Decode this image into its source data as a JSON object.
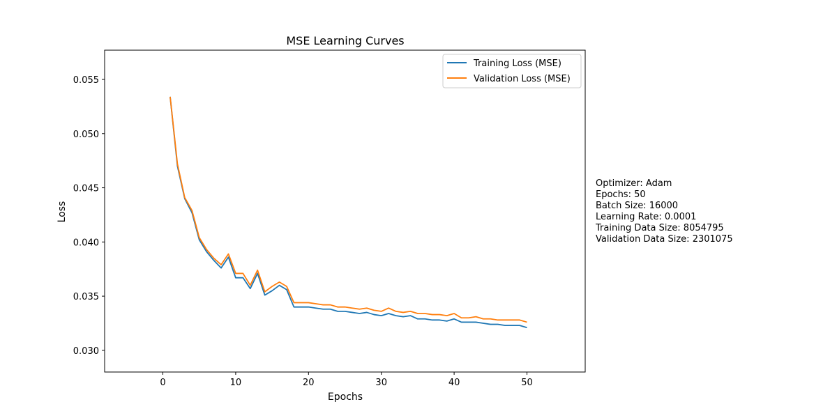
{
  "chart_data": {
    "type": "line",
    "title": "MSE Learning Curves",
    "xlabel": "Epochs",
    "ylabel": "Loss",
    "xlim": [
      -8,
      58
    ],
    "ylim": [
      0.028,
      0.0577
    ],
    "xticks": [
      0,
      10,
      20,
      30,
      40,
      50
    ],
    "yticks": [
      0.03,
      0.035,
      0.04,
      0.045,
      0.05,
      0.055
    ],
    "ytick_labels": [
      "0.030",
      "0.035",
      "0.040",
      "0.045",
      "0.050",
      "0.055"
    ],
    "grid": false,
    "legend_position": "top-right",
    "x": [
      1,
      2,
      3,
      4,
      5,
      6,
      7,
      8,
      9,
      10,
      11,
      12,
      13,
      14,
      15,
      16,
      17,
      18,
      19,
      20,
      21,
      22,
      23,
      24,
      25,
      26,
      27,
      28,
      29,
      30,
      31,
      32,
      33,
      34,
      35,
      36,
      37,
      38,
      39,
      40,
      41,
      42,
      43,
      44,
      45,
      46,
      47,
      48,
      49,
      50
    ],
    "series": [
      {
        "name": "Training Loss (MSE)",
        "color": "#1f77b4",
        "values": [
          0.0534,
          0.047,
          0.044,
          0.0427,
          0.0402,
          0.0391,
          0.0383,
          0.0376,
          0.0386,
          0.0367,
          0.0367,
          0.0357,
          0.0371,
          0.0351,
          0.0355,
          0.036,
          0.0356,
          0.034,
          0.034,
          0.034,
          0.0339,
          0.0338,
          0.0338,
          0.0336,
          0.0336,
          0.0335,
          0.0334,
          0.0335,
          0.0333,
          0.0332,
          0.0334,
          0.0332,
          0.0331,
          0.0332,
          0.0329,
          0.0329,
          0.0328,
          0.0328,
          0.0327,
          0.0329,
          0.0326,
          0.0326,
          0.0326,
          0.0325,
          0.0324,
          0.0324,
          0.0323,
          0.0323,
          0.0323,
          0.0321
        ]
      },
      {
        "name": "Validation Loss (MSE)",
        "color": "#ff7f0e",
        "values": [
          0.0534,
          0.0472,
          0.0441,
          0.0429,
          0.0404,
          0.0393,
          0.0385,
          0.0379,
          0.0389,
          0.0371,
          0.0371,
          0.036,
          0.0374,
          0.0354,
          0.0359,
          0.0363,
          0.0359,
          0.0344,
          0.0344,
          0.0344,
          0.0343,
          0.0342,
          0.0342,
          0.034,
          0.034,
          0.0339,
          0.0338,
          0.0339,
          0.0337,
          0.0336,
          0.0339,
          0.0336,
          0.0335,
          0.0336,
          0.0334,
          0.0334,
          0.0333,
          0.0333,
          0.0332,
          0.0334,
          0.033,
          0.033,
          0.0331,
          0.0329,
          0.0329,
          0.0328,
          0.0328,
          0.0328,
          0.0328,
          0.0326
        ]
      }
    ]
  },
  "info_box": {
    "lines": [
      "Optimizer: Adam",
      "Epochs: 50",
      "Batch Size: 16000",
      "Learning Rate: 0.0001",
      "Training Data Size: 8054795",
      "Validation Data Size: 2301075"
    ]
  }
}
